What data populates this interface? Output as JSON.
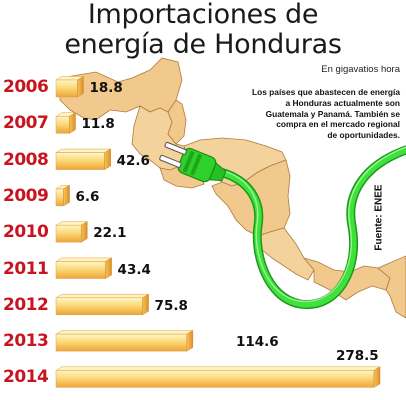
{
  "header": {
    "title_line1": "Importaciones de",
    "title_line2": "energía de Honduras",
    "unit": "En gigavatios hora"
  },
  "annotation": {
    "text_lines": [
      "Los países que abastecen de energía",
      "a Honduras actualmente son",
      "Guatemala y Panamá. También se",
      "compra en el mercado regional",
      "de oportunidades."
    ]
  },
  "source": "Fuente: ENEE",
  "colors": {
    "year_label": "#c8141e",
    "bar_light": "#fff2b8",
    "bar_mid": "#f7c95c",
    "bar_dark": "#e8982e",
    "map_land": "#f1c98c",
    "map_border": "#b07a3c",
    "cable": "#2fd02b",
    "cable_dark": "#1b9a1a"
  },
  "chart_data": {
    "type": "bar",
    "orientation": "horizontal",
    "title": "Importaciones de energía de Honduras",
    "unit": "En gigavatios hora",
    "categories": [
      "2006",
      "2007",
      "2008",
      "2009",
      "2010",
      "2011",
      "2012",
      "2013",
      "2014"
    ],
    "values": [
      18.8,
      11.8,
      42.6,
      6.6,
      22.1,
      43.4,
      75.8,
      114.6,
      278.5
    ],
    "value_labels": [
      "18.8",
      "11.8",
      "42.6",
      "6.6",
      "22.1",
      "43.4",
      "75.8",
      "114.6",
      "278.5"
    ],
    "xlim": [
      0,
      278.5
    ]
  }
}
